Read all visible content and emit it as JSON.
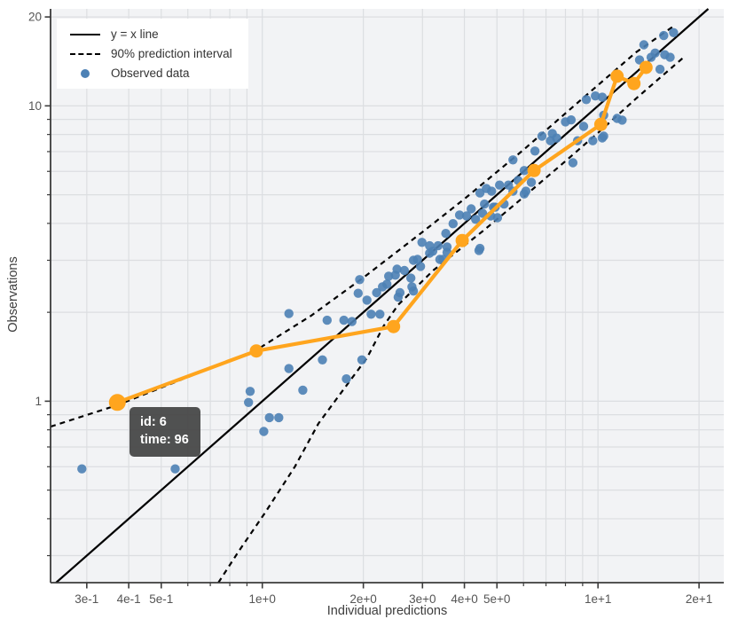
{
  "legend": {
    "items": [
      {
        "label": "y = x line",
        "sample": "solid-line"
      },
      {
        "label": "90% prediction interval",
        "sample": "dashed-line"
      },
      {
        "label": "Observed data",
        "sample": "blue-point"
      }
    ]
  },
  "tooltip": {
    "line1": "id: 6",
    "line2": "time: 96"
  },
  "chart_data": {
    "type": "scatter",
    "title": "",
    "xlabel": "Individual predictions",
    "ylabel": "Observations",
    "x_scale": "log",
    "y_scale": "log",
    "xlim": [
      0.234,
      23.7
    ],
    "ylim": [
      0.243,
      21.3
    ],
    "grid": true,
    "legend_position": "top-left",
    "x_ticks": [
      {
        "v": 0.3,
        "label": "3e-1"
      },
      {
        "v": 0.4,
        "label": "4e-1"
      },
      {
        "v": 0.5,
        "label": "5e-1"
      },
      {
        "v": 1,
        "label": "1e+0"
      },
      {
        "v": 2,
        "label": "2e+0"
      },
      {
        "v": 3,
        "label": "3e+0"
      },
      {
        "v": 4,
        "label": "4e+0"
      },
      {
        "v": 5,
        "label": "5e+0"
      },
      {
        "v": 10,
        "label": "1e+1"
      },
      {
        "v": 20,
        "label": "2e+1"
      }
    ],
    "x_minor_ticks": [
      0.6,
      0.7,
      0.8,
      0.9,
      6,
      7,
      8,
      9
    ],
    "y_ticks": [
      {
        "v": 20,
        "label": "20"
      },
      {
        "v": 10,
        "label": "10"
      },
      {
        "v": 1,
        "label": "1"
      }
    ],
    "y_minor_ticks": [
      9,
      8,
      7,
      6,
      5,
      4,
      3,
      2,
      0.9,
      0.8,
      0.7,
      0.6,
      0.5,
      0.4,
      0.3
    ],
    "identity_line": {
      "label": "y = x line",
      "points": [
        [
          0.243,
          0.243
        ],
        [
          21.3,
          21.3
        ]
      ]
    },
    "prediction_interval": {
      "label": "90% prediction interval",
      "upper": [
        [
          0.234,
          0.82
        ],
        [
          0.37,
          0.97
        ],
        [
          0.56,
          1.17
        ],
        [
          0.96,
          1.49
        ],
        [
          1.4,
          1.95
        ],
        [
          2.0,
          2.62
        ],
        [
          3.0,
          3.74
        ],
        [
          4.0,
          4.84
        ],
        [
          6.0,
          7.1
        ],
        [
          9.0,
          10.6
        ],
        [
          13.0,
          15.2
        ],
        [
          17.0,
          18.8
        ]
      ],
      "lower": [
        [
          0.74,
          0.243
        ],
        [
          0.85,
          0.31
        ],
        [
          1.02,
          0.42
        ],
        [
          1.25,
          0.6
        ],
        [
          1.47,
          0.84
        ],
        [
          1.75,
          1.1
        ],
        [
          2.05,
          1.4
        ],
        [
          2.3,
          1.8
        ],
        [
          2.54,
          2.12
        ],
        [
          3.24,
          2.78
        ],
        [
          4.54,
          3.77
        ],
        [
          5.67,
          4.65
        ],
        [
          8.0,
          6.5
        ],
        [
          10.0,
          8.1
        ],
        [
          13.0,
          10.6
        ],
        [
          18.0,
          14.6
        ]
      ]
    },
    "observed": {
      "label": "Observed data",
      "points": [
        [
          0.29,
          0.59
        ],
        [
          0.55,
          0.59
        ],
        [
          0.91,
          0.99
        ],
        [
          0.92,
          1.08
        ],
        [
          1.01,
          0.79
        ],
        [
          1.05,
          0.88
        ],
        [
          1.12,
          0.88
        ],
        [
          1.2,
          1.29
        ],
        [
          1.32,
          1.09
        ],
        [
          1.51,
          1.38
        ],
        [
          1.78,
          1.19
        ],
        [
          1.98,
          1.38
        ],
        [
          1.2,
          1.98
        ],
        [
          1.56,
          1.88
        ],
        [
          1.75,
          1.88
        ],
        [
          1.85,
          1.86
        ],
        [
          1.95,
          2.58
        ],
        [
          1.93,
          2.32
        ],
        [
          2.05,
          2.2
        ],
        [
          2.11,
          1.97
        ],
        [
          2.24,
          1.97
        ],
        [
          2.19,
          2.33
        ],
        [
          2.28,
          2.44
        ],
        [
          2.35,
          2.49
        ],
        [
          2.38,
          2.65
        ],
        [
          2.49,
          2.67
        ],
        [
          2.52,
          2.8
        ],
        [
          2.54,
          2.25
        ],
        [
          2.57,
          2.33
        ],
        [
          2.65,
          2.77
        ],
        [
          2.77,
          2.61
        ],
        [
          2.79,
          2.44
        ],
        [
          2.82,
          3.0
        ],
        [
          2.82,
          2.36
        ],
        [
          2.9,
          3.02
        ],
        [
          2.96,
          2.86
        ],
        [
          2.99,
          3.45
        ],
        [
          3.15,
          3.17
        ],
        [
          3.15,
          3.36
        ],
        [
          3.22,
          3.22
        ],
        [
          3.34,
          3.36
        ],
        [
          3.38,
          3.02
        ],
        [
          3.45,
          3.02
        ],
        [
          3.52,
          3.7
        ],
        [
          3.55,
          3.19
        ],
        [
          3.55,
          3.33
        ],
        [
          3.7,
          3.99
        ],
        [
          3.87,
          4.27
        ],
        [
          4.06,
          4.24
        ],
        [
          4.19,
          4.48
        ],
        [
          4.32,
          4.13
        ],
        [
          4.42,
          3.24
        ],
        [
          4.45,
          3.29
        ],
        [
          4.45,
          5.07
        ],
        [
          4.53,
          4.33
        ],
        [
          4.59,
          4.65
        ],
        [
          4.65,
          5.25
        ],
        [
          4.79,
          4.24
        ],
        [
          4.82,
          5.14
        ],
        [
          4.88,
          4.54
        ],
        [
          4.94,
          4.54
        ],
        [
          5.02,
          4.18
        ],
        [
          5.09,
          5.39
        ],
        [
          5.25,
          4.65
        ],
        [
          5.41,
          5.39
        ],
        [
          5.58,
          5.14
        ],
        [
          5.58,
          6.56
        ],
        [
          5.78,
          5.59
        ],
        [
          6.03,
          6.04
        ],
        [
          6.03,
          5.03
        ],
        [
          6.1,
          5.14
        ],
        [
          6.33,
          5.51
        ],
        [
          6.49,
          7.03
        ],
        [
          6.81,
          7.9
        ],
        [
          7.22,
          7.62
        ],
        [
          7.31,
          8.06
        ],
        [
          7.53,
          7.78
        ],
        [
          8.0,
          8.83
        ],
        [
          8.32,
          8.96
        ],
        [
          8.42,
          6.42
        ],
        [
          8.69,
          7.62
        ],
        [
          9.06,
          8.52
        ],
        [
          9.23,
          10.5
        ],
        [
          9.65,
          7.62
        ],
        [
          9.82,
          10.8
        ],
        [
          10.3,
          10.7
        ],
        [
          10.3,
          7.79
        ],
        [
          10.4,
          7.9
        ],
        [
          10.4,
          9.3
        ],
        [
          11.4,
          9.07
        ],
        [
          11.8,
          8.95
        ],
        [
          12.8,
          11.9
        ],
        [
          13.3,
          14.3
        ],
        [
          13.7,
          16.1
        ],
        [
          14.4,
          14.6
        ],
        [
          14.8,
          15.1
        ],
        [
          15.3,
          13.3
        ],
        [
          15.7,
          17.3
        ],
        [
          15.8,
          14.9
        ],
        [
          16.4,
          14.6
        ],
        [
          16.8,
          17.7
        ]
      ]
    },
    "highlighted_individual": {
      "id": 6,
      "time": 96,
      "points": [
        [
          0.37,
          0.99
        ],
        [
          0.96,
          1.48
        ],
        [
          2.46,
          1.79
        ],
        [
          3.94,
          3.5
        ],
        [
          6.45,
          6.04
        ],
        [
          10.2,
          8.65
        ],
        [
          11.4,
          12.6
        ],
        [
          12.8,
          11.9
        ],
        [
          13.9,
          13.5
        ]
      ]
    },
    "colors": {
      "observed": "#4C81B5",
      "highlight": "#FFA51E",
      "identity_line": "#000000",
      "prediction_interval": "#000000",
      "grid": "#dcdee1",
      "plot_bg": "#f2f3f5",
      "axis_line": "#3b3b3b",
      "tick_text": "#555555",
      "axis_title_text": "#3d3d3d",
      "legend_bg": "#ffffff",
      "tooltip_bg": "#444444",
      "tooltip_text": "#ffffff"
    }
  }
}
